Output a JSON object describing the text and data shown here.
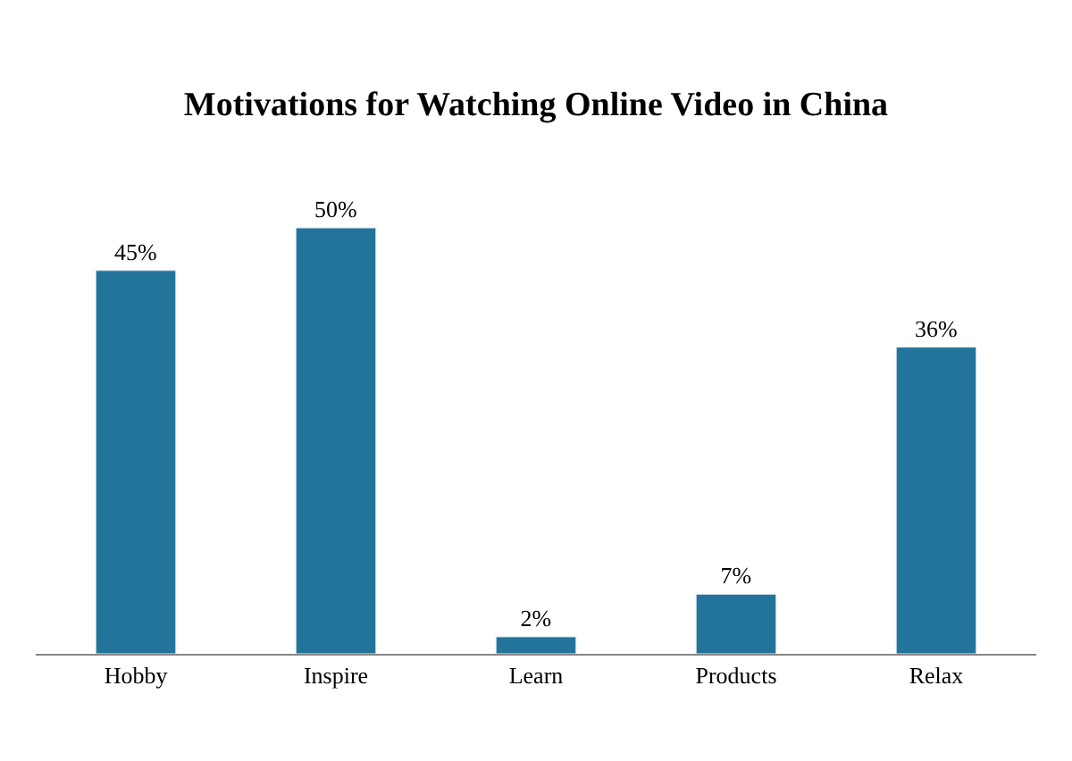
{
  "chart_data": {
    "type": "bar",
    "title": "Motivations for Watching Online Video in China",
    "categories": [
      "Hobby",
      "Inspire",
      "Learn",
      "Products",
      "Relax"
    ],
    "values": [
      45,
      50,
      2,
      7,
      36
    ],
    "value_labels": [
      "45%",
      "50%",
      "2%",
      "7%",
      "36%"
    ],
    "color": "#22749a"
  }
}
